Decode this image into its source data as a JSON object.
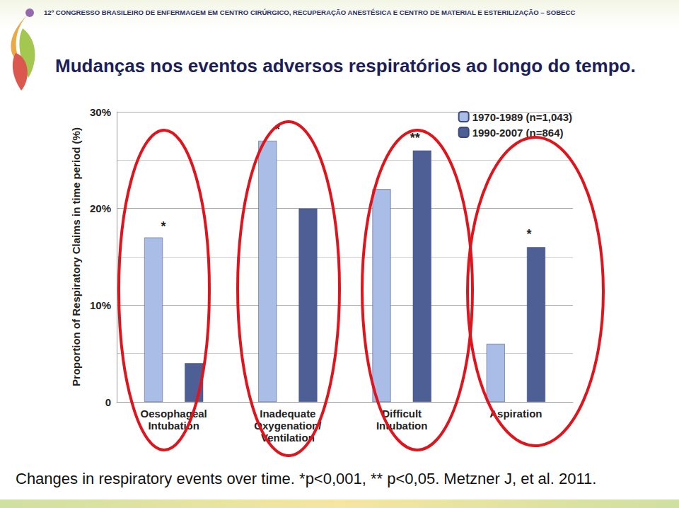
{
  "header": "12º CONGRESSO BRASILEIRO DE ENFERMAGEM EM CENTRO CIRÚRGICO, RECUPERAÇÃO ANESTÉSICA E CENTRO DE MATERIAL E ESTERILIZAÇÃO – SOBECC",
  "caption": "Changes in respiratory events over time. *p<0,001, ** p<0,05. Metzner J, et al. 2011.",
  "chart_data": {
    "type": "bar",
    "title": "Mudanças nos eventos adversos respiratórios ao longo do tempo.",
    "y_label": "Proportion of Respiratory Claims in time period (%)",
    "categories": [
      "Oesophageal Intubation",
      "Inadequate Oxygenation/ Ventilation",
      "Difficult Intubation",
      "Aspiration"
    ],
    "series": [
      {
        "name": "1970-1989 (n=1,043)",
        "color": "#a9bde6",
        "values": [
          17,
          27,
          22,
          6
        ],
        "annotations": [
          "*",
          "*",
          null,
          null
        ]
      },
      {
        "name": "1990-2007 (n=864)",
        "color": "#4e5f96",
        "values": [
          4,
          20,
          26,
          16
        ],
        "annotations": [
          null,
          null,
          "**",
          "*"
        ]
      }
    ],
    "ylim": [
      0,
      30
    ],
    "yticks": [
      0,
      {
        "value": 10,
        "label": "10%"
      },
      {
        "value": 20,
        "label": "20%"
      },
      {
        "value": 30,
        "label": "30%"
      }
    ],
    "grid": true,
    "legend": "top-right"
  }
}
